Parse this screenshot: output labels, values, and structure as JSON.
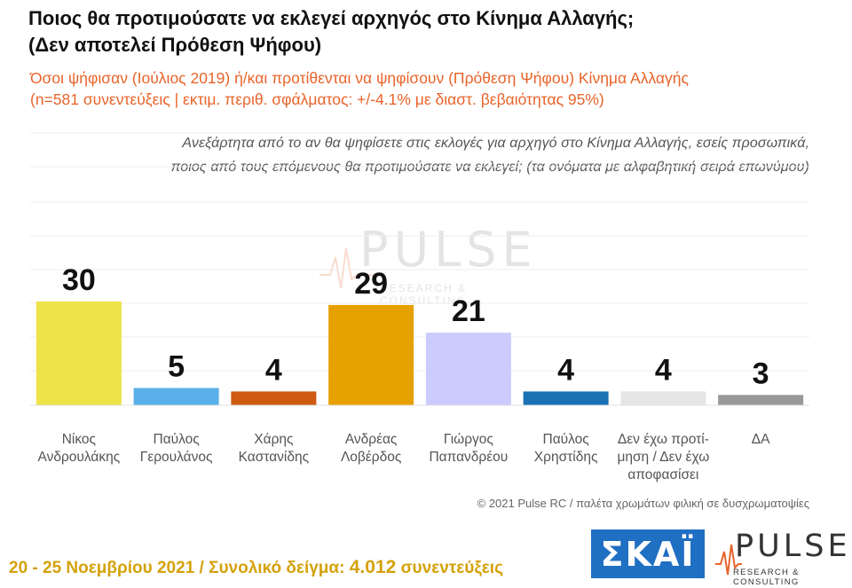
{
  "title_line1": "Ποιος θα προτιμούσατε να εκλεγεί αρχηγός στο Κίνημα Αλλαγής;",
  "title_line2": "(Δεν αποτελεί Πρόθεση Ψήφου)",
  "subtitle_line1": "Όσοι ψήφισαν (Ιούλιος 2019) ή/και προτίθενται να ψηφίσουν  (Πρόθεση Ψήφου) Κίνημα Αλλαγής",
  "subtitle_line2": "(n=581 συνεντεύξεις | εκτιμ. περιθ. σφάλματος: +/-4.1% με διαστ. βεβαιότητας 95%)",
  "question_line1": "Ανεξάρτητα από το αν θα ψηφίσετε στις εκλογές για αρχηγό στο Κίνημα Αλλαγής, εσείς προσωπικά,",
  "question_line2": "ποιος από τους επόμενους θα προτιμούσατε να εκλεγεί; (τα ονόματα με αλφαβητική σειρά επωνύμου)",
  "watermark": {
    "word": "PULSE",
    "sub": "RESEARCH & CONSULTING"
  },
  "credit": "© 2021 Pulse RC   /   παλέτα χρωμάτων φιλική σε δυσχρωματοψίες",
  "footer": {
    "dates": "20 - 25  Νοεμβρίου 2021  /  Συνολικό δείγμα:",
    "sample": "4.012",
    "interviews": "συνεντεύξεις"
  },
  "logos": {
    "skai": "ΣΚΑΪ",
    "pulse_word": "PULSE",
    "pulse_sub": "RESEARCH & CONSULTING"
  },
  "chart_data": {
    "type": "bar",
    "categories": [
      [
        "Νίκος",
        "Ανδρουλάκης"
      ],
      [
        "Παύλος",
        "Γερουλάνος"
      ],
      [
        "Χάρης",
        "Καστανίδης"
      ],
      [
        "Ανδρέας",
        "Λοβέρδος"
      ],
      [
        "Γιώργος",
        "Παπανδρέου"
      ],
      [
        "Παύλος",
        "Χρηστίδης"
      ],
      [
        "Δεν έχω προτί-",
        "μηση / Δεν έχω",
        "αποφασίσει"
      ],
      [
        "ΔΑ"
      ]
    ],
    "values": [
      30,
      5,
      4,
      29,
      21,
      4,
      4,
      3
    ],
    "colors": [
      "#ede247",
      "#5ab0e8",
      "#cf5a12",
      "#e6a000",
      "#cccbfd",
      "#1a72b4",
      "#e6e6e6",
      "#999999"
    ],
    "ylim": [
      0,
      40
    ],
    "grid": true
  }
}
